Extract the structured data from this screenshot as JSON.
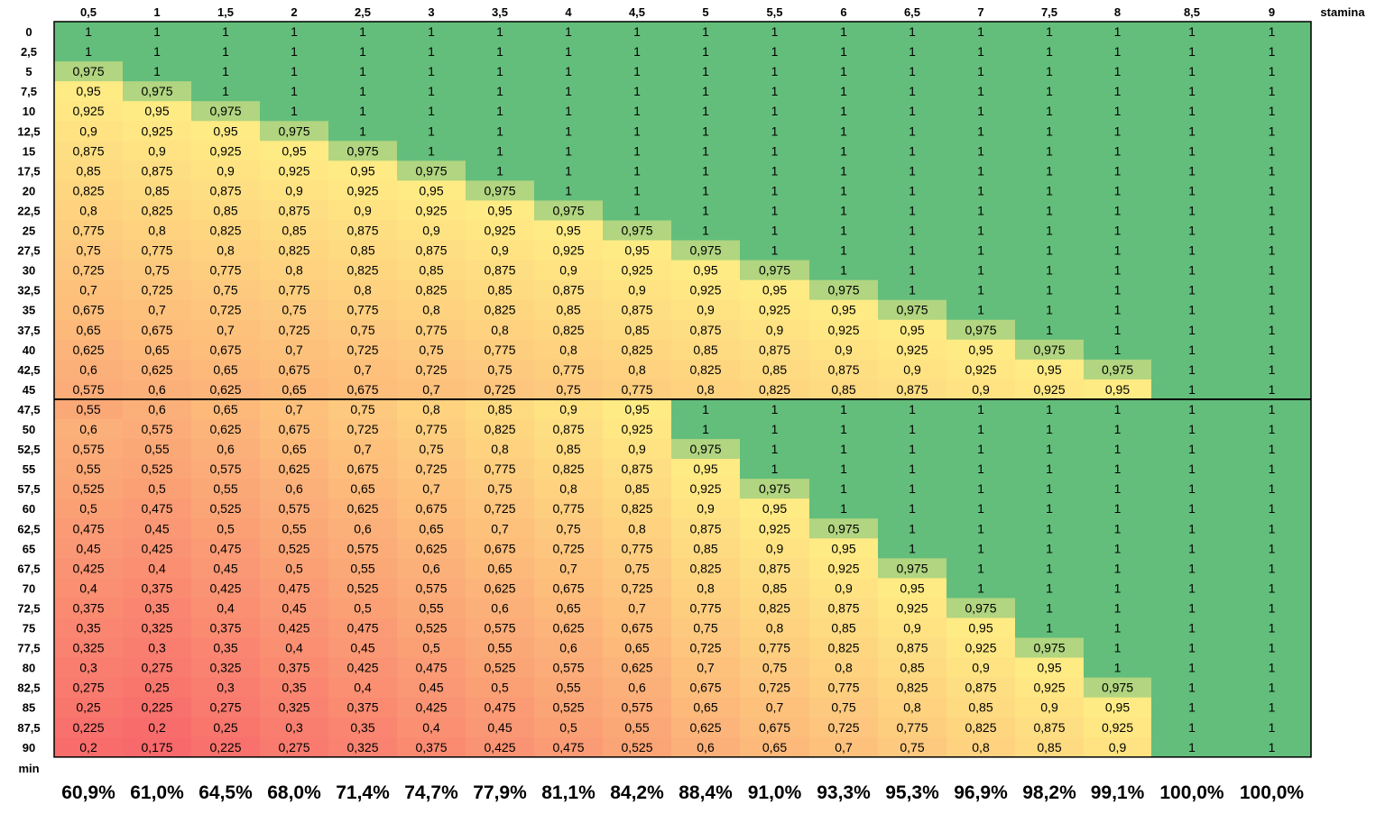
{
  "chart_data": {
    "type": "heatmap",
    "x_axis_title": "stamina",
    "y_axis_title": "min",
    "columns": [
      "0,5",
      "1",
      "1,5",
      "2",
      "2,5",
      "3",
      "3,5",
      "4",
      "4,5",
      "5",
      "5,5",
      "6",
      "6,5",
      "7",
      "7,5",
      "8",
      "8,5",
      "9"
    ],
    "rows": [
      "0",
      "2,5",
      "5",
      "7,5",
      "10",
      "12,5",
      "15",
      "17,5",
      "20",
      "22,5",
      "25",
      "27,5",
      "30",
      "32,5",
      "35",
      "37,5",
      "40",
      "42,5",
      "45",
      "47,5",
      "50",
      "52,5",
      "55",
      "57,5",
      "60",
      "62,5",
      "65",
      "67,5",
      "70",
      "72,5",
      "75",
      "77,5",
      "80",
      "82,5",
      "85",
      "87,5",
      "90"
    ],
    "values": [
      [
        "1",
        "1",
        "1",
        "1",
        "1",
        "1",
        "1",
        "1",
        "1",
        "1",
        "1",
        "1",
        "1",
        "1",
        "1",
        "1",
        "1",
        "1"
      ],
      [
        "1",
        "1",
        "1",
        "1",
        "1",
        "1",
        "1",
        "1",
        "1",
        "1",
        "1",
        "1",
        "1",
        "1",
        "1",
        "1",
        "1",
        "1"
      ],
      [
        "0,975",
        "1",
        "1",
        "1",
        "1",
        "1",
        "1",
        "1",
        "1",
        "1",
        "1",
        "1",
        "1",
        "1",
        "1",
        "1",
        "1",
        "1"
      ],
      [
        "0,95",
        "0,975",
        "1",
        "1",
        "1",
        "1",
        "1",
        "1",
        "1",
        "1",
        "1",
        "1",
        "1",
        "1",
        "1",
        "1",
        "1",
        "1"
      ],
      [
        "0,925",
        "0,95",
        "0,975",
        "1",
        "1",
        "1",
        "1",
        "1",
        "1",
        "1",
        "1",
        "1",
        "1",
        "1",
        "1",
        "1",
        "1",
        "1"
      ],
      [
        "0,9",
        "0,925",
        "0,95",
        "0,975",
        "1",
        "1",
        "1",
        "1",
        "1",
        "1",
        "1",
        "1",
        "1",
        "1",
        "1",
        "1",
        "1",
        "1"
      ],
      [
        "0,875",
        "0,9",
        "0,925",
        "0,95",
        "0,975",
        "1",
        "1",
        "1",
        "1",
        "1",
        "1",
        "1",
        "1",
        "1",
        "1",
        "1",
        "1",
        "1"
      ],
      [
        "0,85",
        "0,875",
        "0,9",
        "0,925",
        "0,95",
        "0,975",
        "1",
        "1",
        "1",
        "1",
        "1",
        "1",
        "1",
        "1",
        "1",
        "1",
        "1",
        "1"
      ],
      [
        "0,825",
        "0,85",
        "0,875",
        "0,9",
        "0,925",
        "0,95",
        "0,975",
        "1",
        "1",
        "1",
        "1",
        "1",
        "1",
        "1",
        "1",
        "1",
        "1",
        "1"
      ],
      [
        "0,8",
        "0,825",
        "0,85",
        "0,875",
        "0,9",
        "0,925",
        "0,95",
        "0,975",
        "1",
        "1",
        "1",
        "1",
        "1",
        "1",
        "1",
        "1",
        "1",
        "1"
      ],
      [
        "0,775",
        "0,8",
        "0,825",
        "0,85",
        "0,875",
        "0,9",
        "0,925",
        "0,95",
        "0,975",
        "1",
        "1",
        "1",
        "1",
        "1",
        "1",
        "1",
        "1",
        "1"
      ],
      [
        "0,75",
        "0,775",
        "0,8",
        "0,825",
        "0,85",
        "0,875",
        "0,9",
        "0,925",
        "0,95",
        "0,975",
        "1",
        "1",
        "1",
        "1",
        "1",
        "1",
        "1",
        "1"
      ],
      [
        "0,725",
        "0,75",
        "0,775",
        "0,8",
        "0,825",
        "0,85",
        "0,875",
        "0,9",
        "0,925",
        "0,95",
        "0,975",
        "1",
        "1",
        "1",
        "1",
        "1",
        "1",
        "1"
      ],
      [
        "0,7",
        "0,725",
        "0,75",
        "0,775",
        "0,8",
        "0,825",
        "0,85",
        "0,875",
        "0,9",
        "0,925",
        "0,95",
        "0,975",
        "1",
        "1",
        "1",
        "1",
        "1",
        "1"
      ],
      [
        "0,675",
        "0,7",
        "0,725",
        "0,75",
        "0,775",
        "0,8",
        "0,825",
        "0,85",
        "0,875",
        "0,9",
        "0,925",
        "0,95",
        "0,975",
        "1",
        "1",
        "1",
        "1",
        "1"
      ],
      [
        "0,65",
        "0,675",
        "0,7",
        "0,725",
        "0,75",
        "0,775",
        "0,8",
        "0,825",
        "0,85",
        "0,875",
        "0,9",
        "0,925",
        "0,95",
        "0,975",
        "1",
        "1",
        "1",
        "1"
      ],
      [
        "0,625",
        "0,65",
        "0,675",
        "0,7",
        "0,725",
        "0,75",
        "0,775",
        "0,8",
        "0,825",
        "0,85",
        "0,875",
        "0,9",
        "0,925",
        "0,95",
        "0,975",
        "1",
        "1",
        "1"
      ],
      [
        "0,6",
        "0,625",
        "0,65",
        "0,675",
        "0,7",
        "0,725",
        "0,75",
        "0,775",
        "0,8",
        "0,825",
        "0,85",
        "0,875",
        "0,9",
        "0,925",
        "0,95",
        "0,975",
        "1",
        "1"
      ],
      [
        "0,575",
        "0,6",
        "0,625",
        "0,65",
        "0,675",
        "0,7",
        "0,725",
        "0,75",
        "0,775",
        "0,8",
        "0,825",
        "0,85",
        "0,875",
        "0,9",
        "0,925",
        "0,95",
        "1",
        "1"
      ],
      [
        "0,55",
        "0,6",
        "0,65",
        "0,7",
        "0,75",
        "0,8",
        "0,85",
        "0,9",
        "0,95",
        "1",
        "1",
        "1",
        "1",
        "1",
        "1",
        "1",
        "1",
        "1"
      ],
      [
        "0,6",
        "0,575",
        "0,625",
        "0,675",
        "0,725",
        "0,775",
        "0,825",
        "0,875",
        "0,925",
        "1",
        "1",
        "1",
        "1",
        "1",
        "1",
        "1",
        "1",
        "1"
      ],
      [
        "0,575",
        "0,55",
        "0,6",
        "0,65",
        "0,7",
        "0,75",
        "0,8",
        "0,85",
        "0,9",
        "0,975",
        "1",
        "1",
        "1",
        "1",
        "1",
        "1",
        "1",
        "1"
      ],
      [
        "0,55",
        "0,525",
        "0,575",
        "0,625",
        "0,675",
        "0,725",
        "0,775",
        "0,825",
        "0,875",
        "0,95",
        "1",
        "1",
        "1",
        "1",
        "1",
        "1",
        "1",
        "1"
      ],
      [
        "0,525",
        "0,5",
        "0,55",
        "0,6",
        "0,65",
        "0,7",
        "0,75",
        "0,8",
        "0,85",
        "0,925",
        "0,975",
        "1",
        "1",
        "1",
        "1",
        "1",
        "1",
        "1"
      ],
      [
        "0,5",
        "0,475",
        "0,525",
        "0,575",
        "0,625",
        "0,675",
        "0,725",
        "0,775",
        "0,825",
        "0,9",
        "0,95",
        "1",
        "1",
        "1",
        "1",
        "1",
        "1",
        "1"
      ],
      [
        "0,475",
        "0,45",
        "0,5",
        "0,55",
        "0,6",
        "0,65",
        "0,7",
        "0,75",
        "0,8",
        "0,875",
        "0,925",
        "0,975",
        "1",
        "1",
        "1",
        "1",
        "1",
        "1"
      ],
      [
        "0,45",
        "0,425",
        "0,475",
        "0,525",
        "0,575",
        "0,625",
        "0,675",
        "0,725",
        "0,775",
        "0,85",
        "0,9",
        "0,95",
        "1",
        "1",
        "1",
        "1",
        "1",
        "1"
      ],
      [
        "0,425",
        "0,4",
        "0,45",
        "0,5",
        "0,55",
        "0,6",
        "0,65",
        "0,7",
        "0,75",
        "0,825",
        "0,875",
        "0,925",
        "0,975",
        "1",
        "1",
        "1",
        "1",
        "1"
      ],
      [
        "0,4",
        "0,375",
        "0,425",
        "0,475",
        "0,525",
        "0,575",
        "0,625",
        "0,675",
        "0,725",
        "0,8",
        "0,85",
        "0,9",
        "0,95",
        "1",
        "1",
        "1",
        "1",
        "1"
      ],
      [
        "0,375",
        "0,35",
        "0,4",
        "0,45",
        "0,5",
        "0,55",
        "0,6",
        "0,65",
        "0,7",
        "0,775",
        "0,825",
        "0,875",
        "0,925",
        "0,975",
        "1",
        "1",
        "1",
        "1"
      ],
      [
        "0,35",
        "0,325",
        "0,375",
        "0,425",
        "0,475",
        "0,525",
        "0,575",
        "0,625",
        "0,675",
        "0,75",
        "0,8",
        "0,85",
        "0,9",
        "0,95",
        "1",
        "1",
        "1",
        "1"
      ],
      [
        "0,325",
        "0,3",
        "0,35",
        "0,4",
        "0,45",
        "0,5",
        "0,55",
        "0,6",
        "0,65",
        "0,725",
        "0,775",
        "0,825",
        "0,875",
        "0,925",
        "0,975",
        "1",
        "1",
        "1"
      ],
      [
        "0,3",
        "0,275",
        "0,325",
        "0,375",
        "0,425",
        "0,475",
        "0,525",
        "0,575",
        "0,625",
        "0,7",
        "0,75",
        "0,8",
        "0,85",
        "0,9",
        "0,95",
        "1",
        "1",
        "1"
      ],
      [
        "0,275",
        "0,25",
        "0,3",
        "0,35",
        "0,4",
        "0,45",
        "0,5",
        "0,55",
        "0,6",
        "0,675",
        "0,725",
        "0,775",
        "0,825",
        "0,875",
        "0,925",
        "0,975",
        "1",
        "1"
      ],
      [
        "0,25",
        "0,225",
        "0,275",
        "0,325",
        "0,375",
        "0,425",
        "0,475",
        "0,525",
        "0,575",
        "0,65",
        "0,7",
        "0,75",
        "0,8",
        "0,85",
        "0,9",
        "0,95",
        "1",
        "1"
      ],
      [
        "0,225",
        "0,2",
        "0,25",
        "0,3",
        "0,35",
        "0,4",
        "0,45",
        "0,5",
        "0,55",
        "0,625",
        "0,675",
        "0,725",
        "0,775",
        "0,825",
        "0,875",
        "0,925",
        "1",
        "1"
      ],
      [
        "0,2",
        "0,175",
        "0,225",
        "0,275",
        "0,325",
        "0,375",
        "0,425",
        "0,475",
        "0,525",
        "0,6",
        "0,65",
        "0,7",
        "0,75",
        "0,8",
        "0,85",
        "0,9",
        "1",
        "1"
      ]
    ],
    "column_summary": [
      "60,9%",
      "61,0%",
      "64,5%",
      "68,0%",
      "71,4%",
      "74,7%",
      "77,9%",
      "81,1%",
      "84,2%",
      "88,4%",
      "91,0%",
      "93,3%",
      "95,3%",
      "96,9%",
      "98,2%",
      "99,1%",
      "100,0%",
      "100,0%"
    ],
    "color_scale": {
      "low_value": 0.175,
      "low_color": "#f8696b",
      "mid_value": 0.95,
      "mid_color": "#ffeb84",
      "high_value": 1,
      "high_color": "#63be7b"
    },
    "separator_after_row": "45",
    "border_color": "#000000"
  }
}
